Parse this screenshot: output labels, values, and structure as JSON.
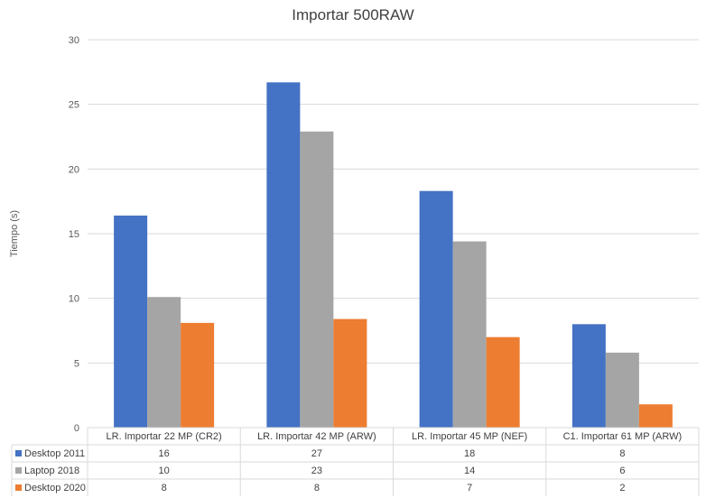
{
  "chart_data": {
    "type": "bar",
    "title": "Importar 500RAW",
    "xlabel": "",
    "ylabel": "Tiempo (s)",
    "ylim": [
      0,
      30
    ],
    "yticks": [
      0,
      5,
      10,
      15,
      20,
      25,
      30
    ],
    "grid": true,
    "legend": "data-table",
    "categories": [
      "LR. Importar 22 MP (CR2)",
      "LR. Importar 42 MP (ARW)",
      "LR. Importar 45 MP (NEF)",
      "C1. Importar 61 MP (ARW)"
    ],
    "series": [
      {
        "name": "Desktop 2011",
        "color": "#4472c4",
        "values": [
          16.4,
          26.7,
          18.3,
          8.0
        ],
        "table_values": [
          "16",
          "27",
          "18",
          "8"
        ]
      },
      {
        "name": "Laptop 2018",
        "color": "#a5a5a5",
        "values": [
          10.1,
          22.9,
          14.4,
          5.8
        ],
        "table_values": [
          "10",
          "23",
          "14",
          "6"
        ]
      },
      {
        "name": "Desktop 2020",
        "color": "#ed7d31",
        "values": [
          8.1,
          8.4,
          7.0,
          1.8
        ],
        "table_values": [
          "8",
          "8",
          "7",
          "2"
        ]
      }
    ]
  }
}
